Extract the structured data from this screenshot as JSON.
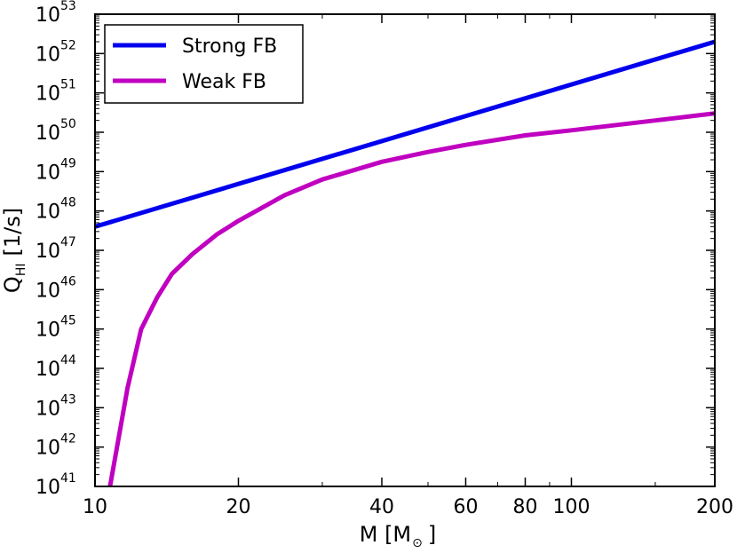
{
  "chart_data": {
    "type": "line",
    "title": "",
    "xlabel": {
      "main": "M [M",
      "sub": "⊙",
      "close": "]"
    },
    "ylabel": {
      "main": "Q",
      "sub": "HI",
      "rest": "[1/s]"
    },
    "xscale": "log",
    "yscale": "log",
    "xlim": [
      10,
      200
    ],
    "ylim_exponent": [
      41,
      53
    ],
    "x_ticks": [
      {
        "value": 10,
        "label": "10"
      },
      {
        "value": 20,
        "label": "20"
      },
      {
        "value": 40,
        "label": "40"
      },
      {
        "value": 60,
        "label": "60"
      },
      {
        "value": 80,
        "label": "80"
      },
      {
        "value": 100,
        "label": "100"
      },
      {
        "value": 200,
        "label": "200"
      }
    ],
    "y_ticks": [
      {
        "exponent": 41,
        "base": "10",
        "exp": "41"
      },
      {
        "exponent": 42,
        "base": "10",
        "exp": "42"
      },
      {
        "exponent": 43,
        "base": "10",
        "exp": "43"
      },
      {
        "exponent": 44,
        "base": "10",
        "exp": "44"
      },
      {
        "exponent": 45,
        "base": "10",
        "exp": "45"
      },
      {
        "exponent": 46,
        "base": "10",
        "exp": "46"
      },
      {
        "exponent": 47,
        "base": "10",
        "exp": "47"
      },
      {
        "exponent": 48,
        "base": "10",
        "exp": "48"
      },
      {
        "exponent": 49,
        "base": "10",
        "exp": "49"
      },
      {
        "exponent": 50,
        "base": "10",
        "exp": "50"
      },
      {
        "exponent": 51,
        "base": "10",
        "exp": "51"
      },
      {
        "exponent": 52,
        "base": "10",
        "exp": "52"
      },
      {
        "exponent": 53,
        "base": "10",
        "exp": "53"
      }
    ],
    "legend_position": "top-left",
    "series": [
      {
        "name": "Strong FB",
        "color": "#0000ee",
        "points": [
          {
            "x": 10,
            "log10y": 47.6
          },
          {
            "x": 200,
            "log10y": 52.3
          }
        ]
      },
      {
        "name": "Weak FB",
        "color": "#c000c0",
        "points": [
          {
            "x": 10.75,
            "log10y": 41.0
          },
          {
            "x": 11.7,
            "log10y": 43.5
          },
          {
            "x": 12.5,
            "log10y": 45.0
          },
          {
            "x": 13.5,
            "log10y": 45.8
          },
          {
            "x": 14.5,
            "log10y": 46.4
          },
          {
            "x": 16,
            "log10y": 46.9
          },
          {
            "x": 18,
            "log10y": 47.4
          },
          {
            "x": 20,
            "log10y": 47.75
          },
          {
            "x": 25,
            "log10y": 48.4
          },
          {
            "x": 30,
            "log10y": 48.8
          },
          {
            "x": 40,
            "log10y": 49.25
          },
          {
            "x": 50,
            "log10y": 49.5
          },
          {
            "x": 60,
            "log10y": 49.68
          },
          {
            "x": 80,
            "log10y": 49.92
          },
          {
            "x": 100,
            "log10y": 50.05
          },
          {
            "x": 150,
            "log10y": 50.3
          },
          {
            "x": 200,
            "log10y": 50.48
          }
        ]
      }
    ]
  }
}
